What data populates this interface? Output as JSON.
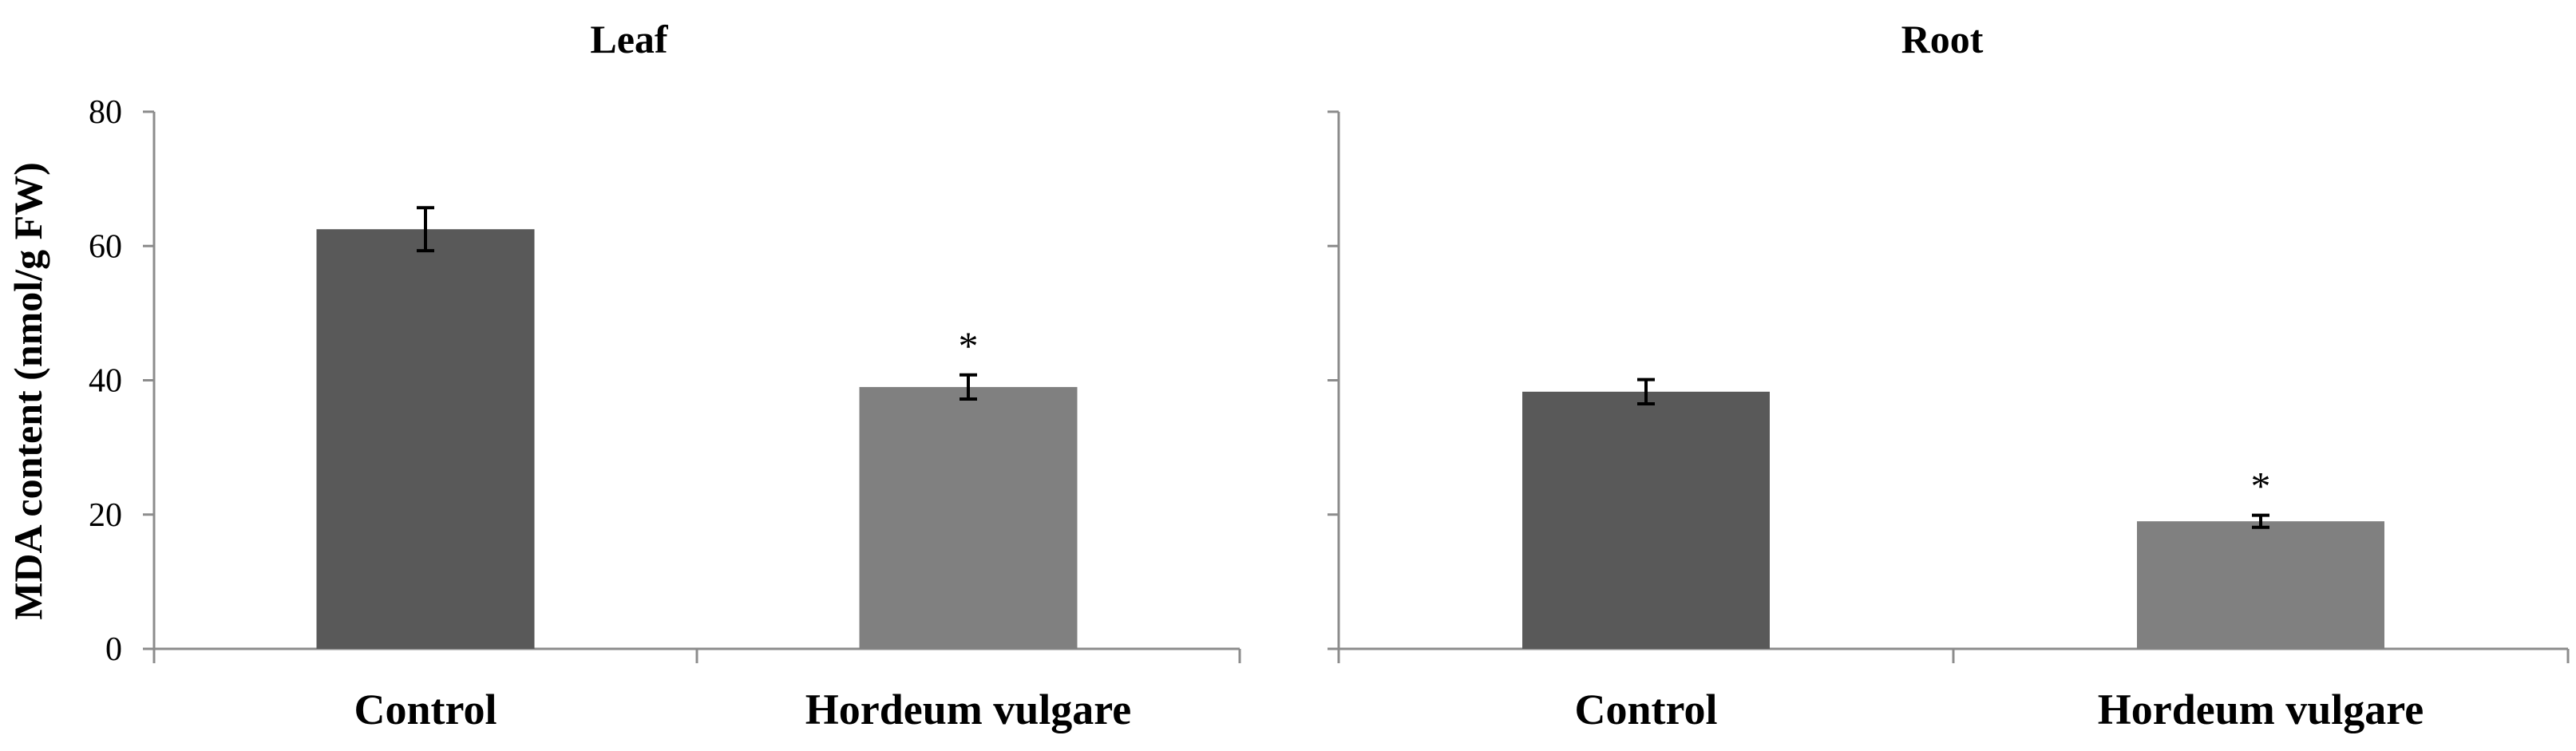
{
  "y_axis_label": "MDA content (nmol/g FW)",
  "chart_data": [
    {
      "type": "bar",
      "title": "Leaf",
      "categories": [
        "Control",
        "Hordeum vulgare"
      ],
      "values": [
        62.5,
        39
      ],
      "errors": [
        3.2,
        1.8
      ],
      "significance": [
        "",
        "*"
      ],
      "bar_colors": [
        "#595959",
        "#808080"
      ],
      "ylabel": "MDA content (nmol/g FW)",
      "ylim": [
        0,
        80
      ],
      "yticks": [
        "0",
        "20",
        "40",
        "60",
        "80"
      ],
      "grid": false,
      "legend": "none"
    },
    {
      "type": "bar",
      "title": "Root",
      "categories": [
        "Control",
        "Hordeum vulgare"
      ],
      "values": [
        38.3,
        19
      ],
      "errors": [
        1.8,
        0.9
      ],
      "significance": [
        "",
        "*"
      ],
      "bar_colors": [
        "#595959",
        "#808080"
      ],
      "ylim": [
        0,
        80
      ],
      "yticks": [
        "",
        "",
        "",
        "",
        ""
      ],
      "grid": false,
      "legend": "none"
    }
  ]
}
